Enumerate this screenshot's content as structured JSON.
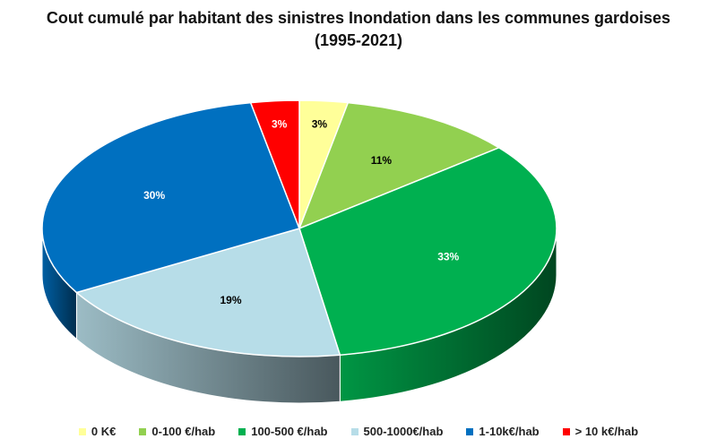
{
  "chart_data": {
    "type": "pie",
    "title": "Cout cumulé par habitant des sinistres Inondation dans les communes gardoises",
    "subtitle": "(1995-2021)",
    "slices": [
      {
        "label": "0 K€",
        "value": 3,
        "display": "3%",
        "color": "#FFFF99",
        "label_color": "#000000"
      },
      {
        "label": "0-100 €/hab",
        "value": 11,
        "display": "11%",
        "color": "#92D050",
        "label_color": "#000000"
      },
      {
        "label": "100-500 €/hab",
        "value": 33,
        "display": "33%",
        "color": "#00B050",
        "label_color": "#FFFFFF"
      },
      {
        "label": "500-1000€/hab",
        "value": 19,
        "display": "19%",
        "color": "#B7DDE8",
        "label_color": "#000000"
      },
      {
        "label": "1-10k€/hab",
        "value": 30,
        "display": "30%",
        "color": "#0070C0",
        "label_color": "#FFFFFF"
      },
      {
        "label": "> 10 k€/hab",
        "value": 3,
        "display": "3%",
        "color": "#FF0000",
        "label_color": "#FFFFFF"
      }
    ],
    "legend_position": "bottom",
    "style": "3d-tilted"
  }
}
